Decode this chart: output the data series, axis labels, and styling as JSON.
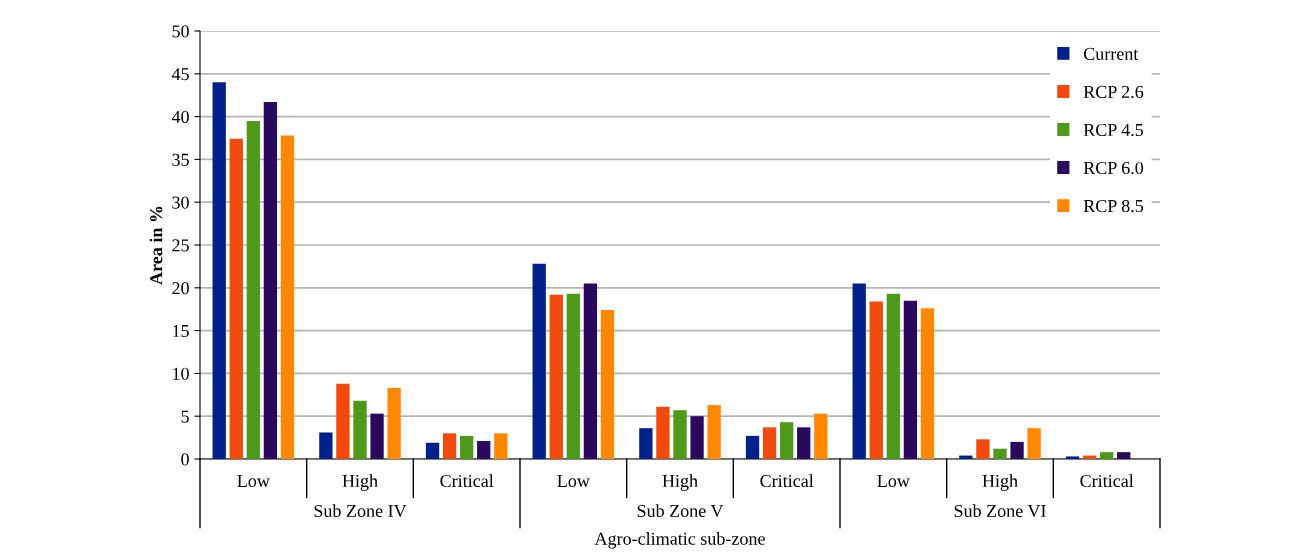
{
  "chart_data": {
    "type": "bar",
    "xlabel": "Agro-climatic sub-zone",
    "ylabel": "Area in %",
    "categories": [
      "Low",
      "High",
      "Critical",
      "Low",
      "High",
      "Critical",
      "Low",
      "High",
      "Critical"
    ],
    "annotations": [
      "Sub Zone IV",
      "Sub Zone V",
      "Sub Zone VI"
    ],
    "series": [
      {
        "name": "Current",
        "color": "#00208a",
        "values": [
          44.0,
          3.1,
          1.9,
          22.8,
          3.6,
          2.7,
          20.5,
          0.4,
          0.3
        ]
      },
      {
        "name": "RCP 2.6",
        "color": "#f04a0c",
        "values": [
          37.4,
          8.8,
          3.0,
          19.2,
          6.1,
          3.7,
          18.4,
          2.3,
          0.4
        ]
      },
      {
        "name": "RCP 4.5",
        "color": "#4f9a1a",
        "values": [
          39.5,
          6.8,
          2.7,
          19.3,
          5.7,
          4.3,
          19.3,
          1.2,
          0.8
        ]
      },
      {
        "name": "RCP 6.0",
        "color": "#2a0a5e",
        "values": [
          41.7,
          5.3,
          2.1,
          20.5,
          5.0,
          3.7,
          18.5,
          2.0,
          0.8
        ]
      },
      {
        "name": "RCP 8.5",
        "color": "#ff8800",
        "values": [
          37.8,
          8.3,
          3.0,
          17.4,
          6.3,
          5.3,
          17.6,
          3.6,
          0
        ]
      }
    ],
    "ylim": [
      0,
      50
    ],
    "yticks": [
      0,
      5,
      10,
      15,
      20,
      25,
      30,
      35,
      40,
      45,
      50
    ],
    "grid": "y",
    "legend": "top right"
  }
}
